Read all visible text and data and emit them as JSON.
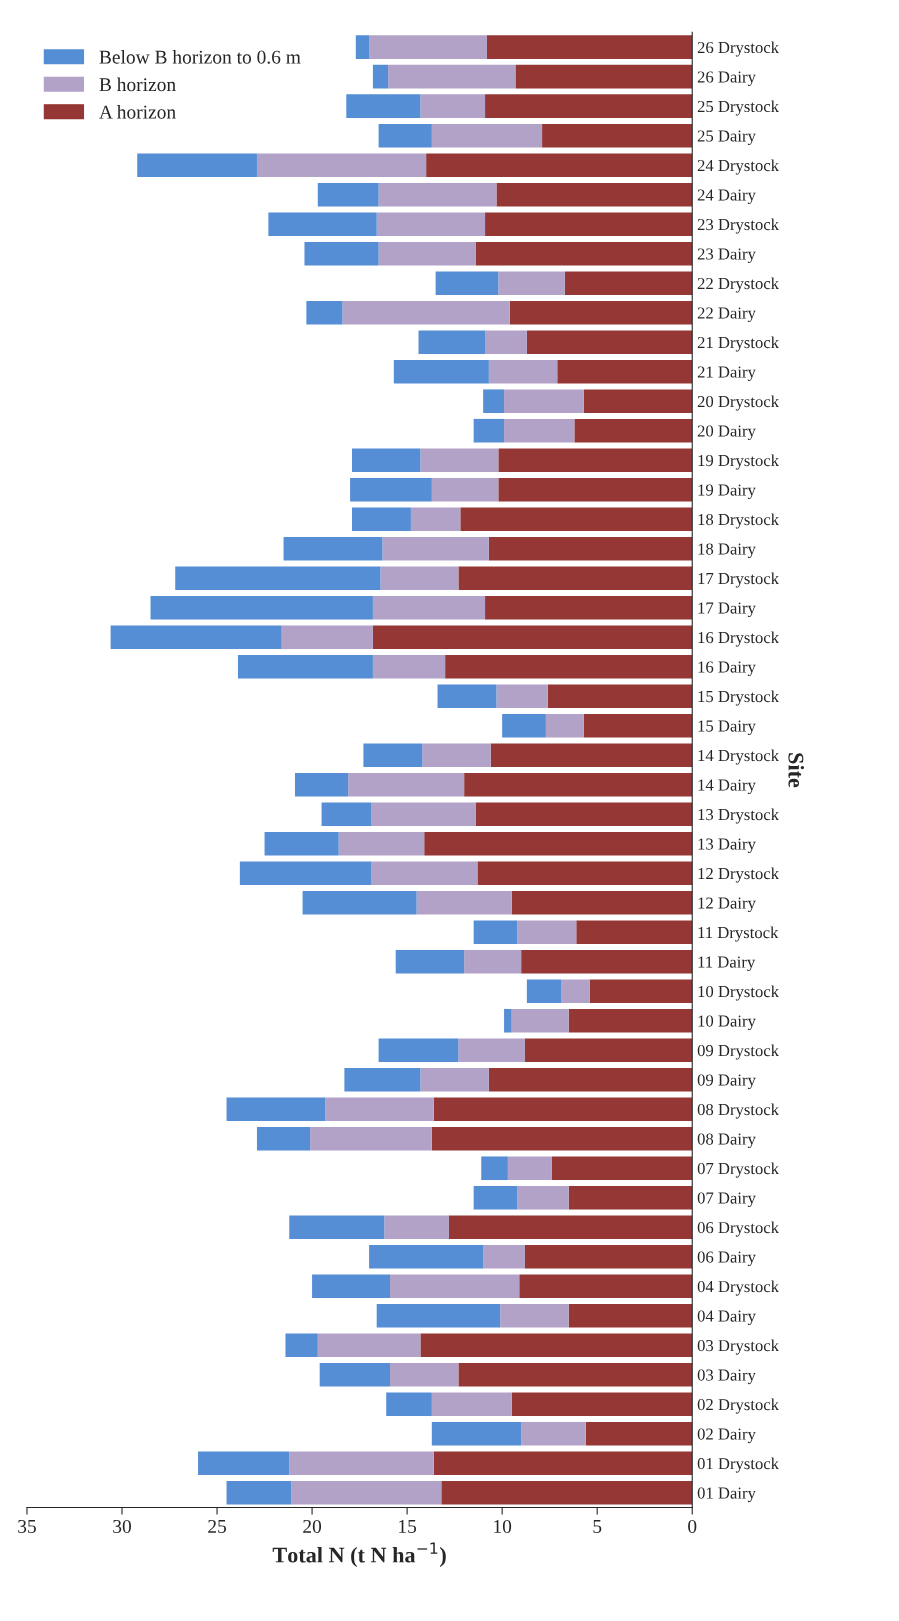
{
  "chart_data": {
    "type": "bar",
    "orientation": "horizontal",
    "stacked": true,
    "xlabel": "Total N (t N ha$^{−1}$)",
    "ylabel": "Site",
    "categories": [
      "26 Drystock",
      "26 Dairy",
      "25 Drystock",
      "25 Dairy",
      "24 Drystock",
      "24 Dairy",
      "23 Drystock",
      "23 Dairy",
      "22 Drystock",
      "22 Dairy",
      "21 Drystock",
      "21 Dairy",
      "20 Drystock",
      "20 Dairy",
      "19 Drystock",
      "19 Dairy",
      "18 Drystock",
      "18 Dairy",
      "17 Drystock",
      "17 Dairy",
      "16 Drystock",
      "16 Dairy",
      "15 Drystock",
      "15 Dairy",
      "14 Drystock",
      "14 Dairy",
      "13 Drystock",
      "13 Dairy",
      "12 Drystock",
      "12 Dairy",
      "11 Drystock",
      "11 Dairy",
      "10 Drystock",
      "10 Dairy",
      "09 Drystock",
      "09 Dairy",
      "08 Drystock",
      "08 Dairy",
      "07 Drystock",
      "07 Dairy",
      "06 Drystock",
      "06 Dairy",
      "04 Drystock",
      "04 Dairy",
      "03 Drystock",
      "03 Dairy",
      "02 Drystock",
      "02 Dairy",
      "01 Drystock",
      "01 Dairy"
    ],
    "series": [
      {
        "name": "A horizon",
        "color": "#953735",
        "values": [
          10.8,
          9.3,
          10.9,
          7.9,
          14.0,
          10.3,
          10.9,
          11.4,
          6.7,
          9.6,
          8.7,
          7.1,
          5.7,
          6.2,
          10.2,
          10.2,
          12.2,
          10.7,
          12.3,
          10.9,
          16.8,
          13.0,
          7.6,
          5.7,
          10.6,
          12.0,
          11.4,
          14.1,
          11.3,
          9.5,
          6.1,
          9.0,
          5.4,
          6.5,
          8.8,
          10.7,
          13.6,
          13.7,
          7.4,
          6.5,
          12.8,
          8.8,
          9.1,
          6.5,
          14.3,
          12.3,
          9.5,
          5.6,
          13.6,
          13.2
        ]
      },
      {
        "name": "B horizon",
        "color": "#b3a2c7",
        "values": [
          6.2,
          6.7,
          3.4,
          5.8,
          8.9,
          6.2,
          5.7,
          5.1,
          3.5,
          8.8,
          2.2,
          3.6,
          4.2,
          3.7,
          4.1,
          3.5,
          2.6,
          5.6,
          4.1,
          5.9,
          4.8,
          3.8,
          2.7,
          2.0,
          3.6,
          6.1,
          5.5,
          4.5,
          5.6,
          5.0,
          3.1,
          3.0,
          1.5,
          3.0,
          3.5,
          3.6,
          5.7,
          6.4,
          2.3,
          2.7,
          3.4,
          2.2,
          6.8,
          3.6,
          5.4,
          3.6,
          4.2,
          3.4,
          7.6,
          7.9
        ]
      },
      {
        "name": "Below B horizon to 0.6 m",
        "color": "#558ed5",
        "values": [
          0.7,
          0.8,
          3.9,
          2.8,
          6.3,
          3.2,
          5.7,
          3.9,
          3.3,
          1.9,
          3.5,
          5.0,
          1.1,
          1.6,
          3.6,
          4.3,
          3.1,
          5.2,
          10.8,
          11.7,
          9.0,
          7.1,
          3.1,
          2.3,
          3.1,
          2.8,
          2.6,
          3.9,
          6.9,
          6.0,
          2.3,
          3.6,
          1.8,
          0.4,
          4.2,
          4.0,
          5.2,
          2.8,
          1.4,
          2.3,
          5.0,
          6.0,
          4.1,
          6.5,
          1.7,
          3.7,
          2.4,
          4.7,
          4.8,
          3.4
        ]
      }
    ],
    "xlim": [
      35,
      0
    ],
    "xticks": [
      0,
      5,
      10,
      15,
      20,
      25,
      30,
      35
    ],
    "legend": "top left",
    "grid": false
  }
}
